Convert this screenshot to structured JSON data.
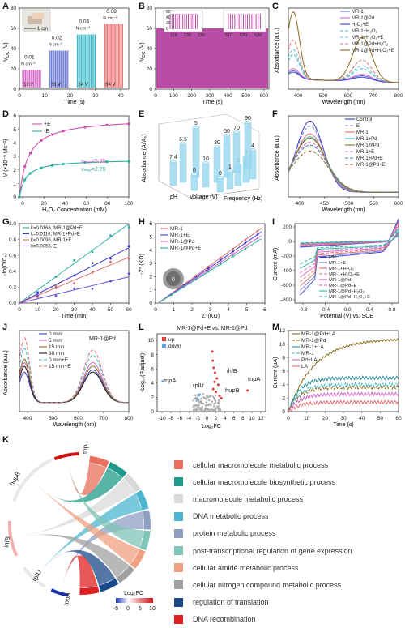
{
  "panels": {
    "A": {
      "letter": "A",
      "ylabel": "V",
      "ylabel_sub": "OC",
      "ylabel_unit": " (V)",
      "xlabel": "Time (s)",
      "scale_label": "1 cm",
      "yticks": [
        "0",
        "20",
        "40",
        "60",
        "80"
      ],
      "xticks": [
        "0",
        "10",
        "20",
        "30",
        "40"
      ],
      "groups": [
        {
          "force": "0.01",
          "unit": "N cm⁻²",
          "voltage": "19 V",
          "peak": 19,
          "color": "#d966c9"
        },
        {
          "force": "0.02",
          "unit": "N cm⁻²",
          "voltage": "38 V",
          "peak": 38,
          "color": "#6a78d6"
        },
        {
          "force": "0.04",
          "unit": "N cm⁻²",
          "voltage": "54 V",
          "peak": 54,
          "color": "#3bb7c9"
        },
        {
          "force": "0.08",
          "unit": "N cm⁻²",
          "voltage": "64 V",
          "peak": 64,
          "color": "#e46a6a"
        }
      ]
    },
    "B": {
      "letter": "B",
      "ylabel": "V",
      "ylabel_sub": "OC",
      "ylabel_unit": " (V)",
      "xlabel": "Time (s)",
      "yticks": [
        "0",
        "20",
        "40",
        "60",
        "80"
      ],
      "xticks": [
        "0",
        "100",
        "200",
        "300",
        "400",
        "500",
        "600"
      ],
      "inset_left_xticks": [
        "110",
        "120",
        "130"
      ],
      "inset_right_xticks": [
        "520",
        "530"
      ],
      "inset_right_first": "510",
      "inset_yticks": [
        "0",
        "20",
        "40",
        "60"
      ],
      "color": "#b03a9e"
    },
    "C": {
      "letter": "C",
      "ylabel": "Absorbance (a.u.)",
      "xlabel": "Wavelength (nm)",
      "xticks": [
        "400",
        "500",
        "600",
        "700",
        "800"
      ],
      "legend": [
        {
          "label": "MR-1",
          "color": "#5b6fd6",
          "dash": ""
        },
        {
          "label": "MR-1@Pd",
          "color": "#d966c9",
          "dash": ""
        },
        {
          "label": "H₂O₂+E",
          "color": "#3a3ad0",
          "dash": ""
        },
        {
          "label": "MR-1+H₂O₂",
          "color": "#3bb7c9",
          "dash": "4,2"
        },
        {
          "label": "MR-1+H₂O₂+E",
          "color": "#6fc3d6",
          "dash": "4,2"
        },
        {
          "label": "MR-1@Pd+H₂O₂",
          "color": "#e07070",
          "dash": "4,2"
        },
        {
          "label": "MR-1@Pd+H₂O₂+E",
          "color": "#8a6a1a",
          "dash": ""
        }
      ]
    },
    "D": {
      "letter": "D",
      "ylabel": "V (×10⁻⁸ Ms⁻¹)",
      "xlabel": "H₂O₂ Concentration (mM)",
      "xticks": [
        "0",
        "20",
        "40",
        "60",
        "80",
        "100"
      ],
      "yticks": [
        "0",
        "1",
        "2",
        "3",
        "4",
        "5",
        "6"
      ],
      "legend": [
        {
          "label": "+E",
          "color": "#d04fb0"
        },
        {
          "label": "-E",
          "color": "#2bb0a0"
        }
      ],
      "vmax_plus": "vₘₐₓ=5.85",
      "vmax_minus": "vₘₐₓ=2.79"
    },
    "E": {
      "letter": "E",
      "ylabel": "Absorbance (Aₗ/A₀)",
      "axis_ph": "pH",
      "axis_voltage": "Voltage (V)",
      "axis_freq": "Frequency (Hz)",
      "ph_values": [
        "7.4",
        "6.5",
        "5"
      ],
      "voltage_values": [
        "0",
        "10",
        "30",
        "50"
      ],
      "freq_values": [
        "0",
        "1",
        "2",
        "3",
        "4",
        "70",
        "90"
      ]
    },
    "F": {
      "letter": "F",
      "ylabel": "Absorbance (a.u.)",
      "xlabel": "Wavelength (nm)",
      "xticks": [
        "400",
        "450",
        "500",
        "550",
        "600"
      ],
      "legend": [
        {
          "label": "Control",
          "color": "#3a3ad0",
          "dash": ""
        },
        {
          "label": "E",
          "color": "#6a78d6",
          "dash": "4,2"
        },
        {
          "label": "MR-1",
          "color": "#e07070",
          "dash": ""
        },
        {
          "label": "MR-1+Pd",
          "color": "#3bb7c9",
          "dash": ""
        },
        {
          "label": "MR-1@Pd",
          "color": "#8a6a1a",
          "dash": ""
        },
        {
          "label": "MR-1+E",
          "color": "#d966c9",
          "dash": "4,2"
        },
        {
          "label": "MR-1+Pd+E",
          "color": "#2b8fa0",
          "dash": "4,2"
        },
        {
          "label": "MR-1@Pd+E",
          "color": "#8a6a1a",
          "dash": "4,2"
        }
      ]
    },
    "G": {
      "letter": "G",
      "ylabel": "-ln(C/C₀)",
      "xlabel": "Time (min)",
      "xticks": [
        "0",
        "10",
        "20",
        "30",
        "40",
        "50",
        "60"
      ],
      "yticks": [
        "0.0",
        "0.2",
        "0.4",
        "0.6",
        "0.8",
        "1.0"
      ],
      "legend": [
        {
          "label": "k=0.0166, MR-1@Pd+E",
          "color": "#2bb0a0"
        },
        {
          "label": "k=0.0116, MR-1+Pd+E",
          "color": "#3a3ad0"
        },
        {
          "label": "k=0.0096, MR-1+E",
          "color": "#e07070"
        },
        {
          "label": "k=0.0055, E",
          "color": "#6a4fd6"
        }
      ]
    },
    "H": {
      "letter": "H",
      "ylabel": "-Z'' (KΩ)",
      "xlabel": "Z' (KΩ)",
      "xticks": [
        "0",
        "1",
        "2",
        "3",
        "4",
        "5",
        "6"
      ],
      "yticks": [
        "0",
        "1",
        "2",
        "3",
        "4",
        "5",
        "6"
      ],
      "legend": [
        {
          "label": "MR-1",
          "color": "#e07070"
        },
        {
          "label": "MR-1+E",
          "color": "#3a3ad0"
        },
        {
          "label": "MR-1@Pd",
          "color": "#d966c9"
        },
        {
          "label": "MR-1@Pd+E",
          "color": "#2bb0a0"
        }
      ],
      "inset_label": "0"
    },
    "I": {
      "letter": "I",
      "ylabel": "Current (mA)",
      "xlabel": "Potential (V) vs. SCE",
      "xticks": [
        "-0.8",
        "-0.4",
        "0.0",
        "0.4",
        "0.8"
      ],
      "yticks": [
        "-800",
        "-600",
        "-400",
        "-200",
        "0",
        "200"
      ],
      "legend": [
        {
          "label": "MR-1",
          "color": "#3a3ad0",
          "dash": ""
        },
        {
          "label": "MR-1+E",
          "color": "#6a78d6",
          "dash": ""
        },
        {
          "label": "MR-1+H₂O₂",
          "color": "#e07070",
          "dash": ""
        },
        {
          "label": "MR-1+H₂O₂+E",
          "color": "#e07070",
          "dash": "4,2"
        },
        {
          "label": "MR-1@Pd",
          "color": "#d966c9",
          "dash": ""
        },
        {
          "label": "MR-1@Pd+E",
          "color": "#d966c9",
          "dash": "4,2"
        },
        {
          "label": "MR-1@Pd+H₂O₂",
          "color": "#2bb0a0",
          "dash": ""
        },
        {
          "label": "MR-1@Pd+H₂O₂+E",
          "color": "#2bb0a0",
          "dash": "4,2"
        }
      ]
    },
    "J": {
      "letter": "J",
      "ylabel": "Absorbance (a.u.)",
      "xlabel": "Wavelength (nm)",
      "xticks": [
        "400",
        "500",
        "600",
        "700",
        "800"
      ],
      "title": "MR-1@Pd",
      "legend": [
        {
          "label": "0    min",
          "color": "#3a3ad0",
          "dash": ""
        },
        {
          "label": "5    min",
          "color": "#d966c9",
          "dash": ""
        },
        {
          "label": "15  min",
          "color": "#8a6a1a",
          "dash": ""
        },
        {
          "label": "30  min",
          "color": "#222222",
          "dash": ""
        },
        {
          "label": "0    min+E",
          "color": "#3bb7c9",
          "dash": "4,2"
        },
        {
          "label": "15  min+E",
          "color": "#e07070",
          "dash": "4,2"
        }
      ]
    },
    "L": {
      "letter": "L",
      "title": "MR-1@Pd+E vs. MR-1@Pd",
      "ylabel": "-Log₁₀(P.adjust)",
      "xlabel": "Log₂FC",
      "xticks": [
        "-10",
        "-8",
        "-6",
        "-4",
        "-2",
        "0",
        "2",
        "4",
        "6",
        "8",
        "10",
        "12"
      ],
      "yticks": [
        "0",
        "2",
        "4",
        "6",
        "8",
        "10"
      ],
      "legend": [
        {
          "label": "up",
          "color": "#e23b3b"
        },
        {
          "label": "down",
          "color": "#5aa0e0"
        }
      ],
      "genes": [
        {
          "name": "tnpA"
        },
        {
          "name": "rplU"
        },
        {
          "name": "ihfB"
        },
        {
          "name": "hupB"
        },
        {
          "name": "tnpA"
        }
      ]
    },
    "M": {
      "letter": "M",
      "ylabel": "Current (μA)",
      "xlabel": "Time (s)",
      "xticks": [
        "0",
        "10",
        "20",
        "30",
        "40",
        "50",
        "60"
      ],
      "yticks": [
        "0",
        "2",
        "4",
        "6",
        "8",
        "10",
        "12"
      ],
      "legend": [
        {
          "label": "MR-1@Pd+LA",
          "color": "#8a6a1a",
          "dash": ""
        },
        {
          "label": "MR-1@Pd",
          "color": "#8a6a1a",
          "dash": "4,2"
        },
        {
          "label": "MR-1+LA",
          "color": "#2b8fa0",
          "dash": ""
        },
        {
          "label": "MR-1",
          "color": "#3bb7c9",
          "dash": "4,2"
        },
        {
          "label": "Pd+LA",
          "color": "#d966c9",
          "dash": ""
        },
        {
          "label": "LA",
          "color": "#e07070",
          "dash": ""
        }
      ]
    },
    "K": {
      "letter": "K",
      "genes": [
        "tnpA",
        "hupB",
        "ihfB",
        "rplU",
        "tnpA"
      ],
      "colorbar_label": "Log₂FC",
      "colorbar_ticks": [
        "-5",
        "0",
        "5",
        "10"
      ],
      "terms": [
        {
          "label": "cellular macromolecule metabolic process",
          "color": "#e8705c"
        },
        {
          "label": "cellular macromolecule biosynthetic process",
          "color": "#1f9b8a"
        },
        {
          "label": "macromolecule metabolic process",
          "color": "#d9d9d9"
        },
        {
          "label": "DNA metabolic process",
          "color": "#4cb6d0"
        },
        {
          "label": "protein metabolic process",
          "color": "#8f9fc4"
        },
        {
          "label": "post-transcriptional regulation of gene expression",
          "color": "#7fc4b8"
        },
        {
          "label": "cellular amide metabolic process",
          "color": "#f0a080"
        },
        {
          "label": "cellular nitrogen compound metabolic process",
          "color": "#a0a0a0"
        },
        {
          "label": "regulation of translation",
          "color": "#1a4a8a"
        },
        {
          "label": "DNA recombination",
          "color": "#e02020"
        }
      ]
    }
  }
}
